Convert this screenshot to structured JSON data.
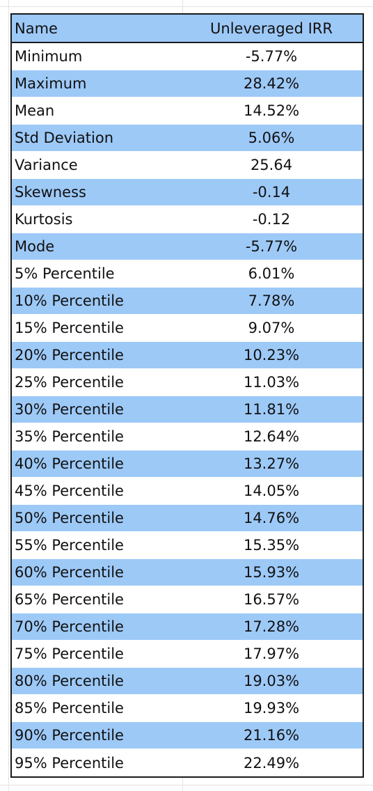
{
  "table": {
    "header": {
      "name": "Name",
      "value": "Unleveraged IRR"
    },
    "shading_color": "#9dc9f7",
    "border_color": "#1a1a1a",
    "rows": [
      {
        "name": "Minimum",
        "value": "-5.77%"
      },
      {
        "name": "Maximum",
        "value": "28.42%"
      },
      {
        "name": "Mean",
        "value": "14.52%"
      },
      {
        "name": "Std Deviation",
        "value": "5.06%"
      },
      {
        "name": "Variance",
        "value": "25.64"
      },
      {
        "name": "Skewness",
        "value": "-0.14"
      },
      {
        "name": "Kurtosis",
        "value": "-0.12"
      },
      {
        "name": "Mode",
        "value": "-5.77%"
      },
      {
        "name": "5% Percentile",
        "value": "6.01%"
      },
      {
        "name": "10% Percentile",
        "value": "7.78%"
      },
      {
        "name": "15% Percentile",
        "value": "9.07%"
      },
      {
        "name": "20% Percentile",
        "value": "10.23%"
      },
      {
        "name": "25% Percentile",
        "value": "11.03%"
      },
      {
        "name": "30% Percentile",
        "value": "11.81%"
      },
      {
        "name": "35% Percentile",
        "value": "12.64%"
      },
      {
        "name": "40% Percentile",
        "value": "13.27%"
      },
      {
        "name": "45% Percentile",
        "value": "14.05%"
      },
      {
        "name": "50% Percentile",
        "value": "14.76%"
      },
      {
        "name": "55% Percentile",
        "value": "15.35%"
      },
      {
        "name": "60% Percentile",
        "value": "15.93%"
      },
      {
        "name": "65% Percentile",
        "value": "16.57%"
      },
      {
        "name": "70% Percentile",
        "value": "17.28%"
      },
      {
        "name": "75% Percentile",
        "value": "17.97%"
      },
      {
        "name": "80% Percentile",
        "value": "19.03%"
      },
      {
        "name": "85% Percentile",
        "value": "19.93%"
      },
      {
        "name": "90% Percentile",
        "value": "21.16%"
      },
      {
        "name": "95% Percentile",
        "value": "22.49%"
      }
    ]
  }
}
